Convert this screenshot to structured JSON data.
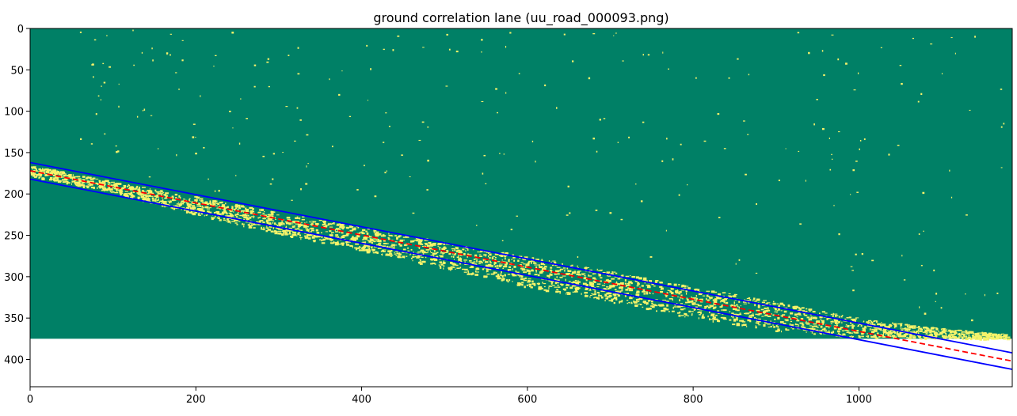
{
  "chart_data": {
    "type": "heatmap",
    "title": "ground correlation lane (uu_road_000093.png)",
    "xlabel": "",
    "ylabel": "",
    "xlim": [
      0,
      1185
    ],
    "ylim": [
      433,
      0
    ],
    "image_extent": {
      "width": 1242,
      "height": 375
    },
    "x_ticks": [
      0,
      200,
      400,
      600,
      800,
      1000
    ],
    "y_ticks": [
      0,
      50,
      100,
      150,
      200,
      250,
      300,
      350,
      400
    ],
    "colors": {
      "background": "#008066",
      "highlight": "#f6f36a",
      "boundary_line": "#0000ff",
      "center_line": "#ff0000"
    },
    "series": [
      {
        "style": "solid-blue",
        "x": [
          0,
          1185
        ],
        "y": [
          162,
          392
        ]
      },
      {
        "style": "dashed-red",
        "x": [
          0,
          1185
        ],
        "y": [
          172,
          402
        ]
      },
      {
        "style": "solid-blue",
        "x": [
          0,
          1185
        ],
        "y": [
          182,
          412
        ]
      }
    ],
    "highlight_band": {
      "description_values": "lane-shaped yellow speckle region",
      "x": [
        0,
        100,
        200,
        300,
        400,
        500,
        600,
        700,
        800,
        900,
        1000,
        1100,
        1185
      ],
      "top": [
        165,
        185,
        203,
        222,
        240,
        258,
        275,
        293,
        312,
        330,
        350,
        362,
        370
      ],
      "bottom": [
        178,
        198,
        225,
        248,
        268,
        290,
        312,
        330,
        350,
        365,
        373,
        375,
        375
      ]
    }
  }
}
